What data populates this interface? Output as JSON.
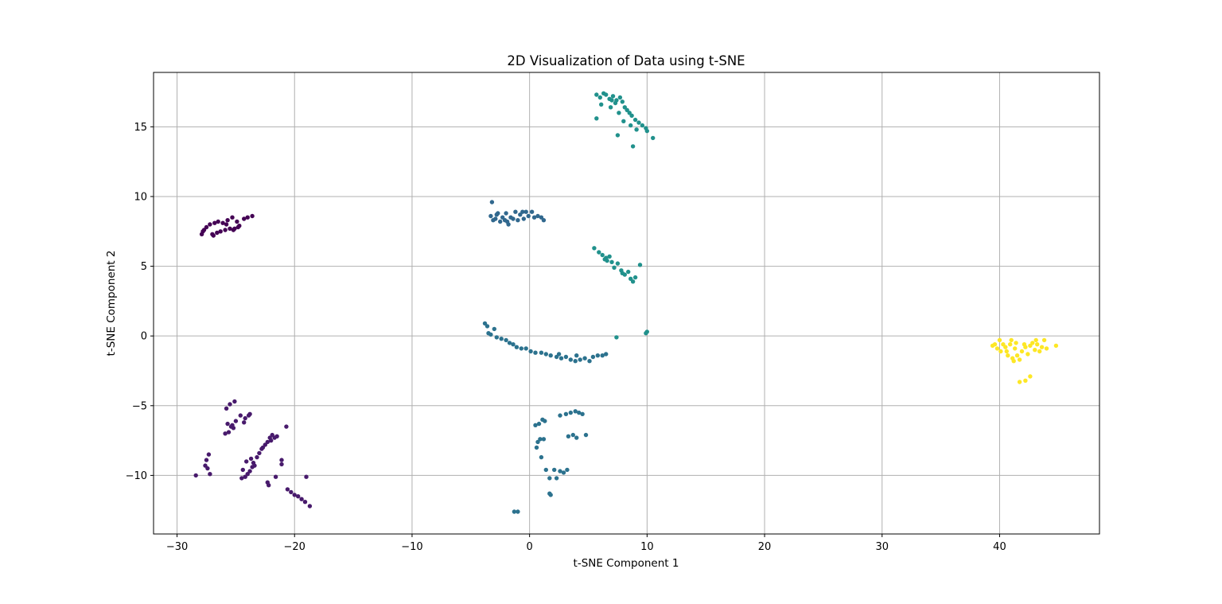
{
  "chart_data": {
    "type": "scatter",
    "title": "2D Visualization of Data using t-SNE",
    "xlabel": "t-SNE Component 1",
    "ylabel": "t-SNE Component 2",
    "xlim": [
      -32,
      48.5
    ],
    "ylim": [
      -14.2,
      18.9
    ],
    "xticks": [
      -30,
      -20,
      -10,
      0,
      10,
      20,
      30,
      40
    ],
    "yticks": [
      -10,
      -5,
      0,
      5,
      10,
      15
    ],
    "xtick_labels": [
      "−30",
      "−20",
      "−10",
      "0",
      "10",
      "20",
      "30",
      "40"
    ],
    "ytick_labels": [
      "−10",
      "−5",
      "0",
      "5",
      "10",
      "15"
    ],
    "grid": true,
    "legend": "none",
    "colormap": "viridis",
    "series": [
      {
        "color": "#440154",
        "points": [
          [
            -27.9,
            7.3
          ],
          [
            -27.7,
            7.6
          ],
          [
            -27.5,
            7.8
          ],
          [
            -27.2,
            8.0
          ],
          [
            -27.0,
            7.3
          ],
          [
            -26.8,
            8.1
          ],
          [
            -26.5,
            8.2
          ],
          [
            -26.3,
            7.5
          ],
          [
            -26.1,
            8.1
          ],
          [
            -25.9,
            7.6
          ],
          [
            -25.7,
            8.3
          ],
          [
            -25.5,
            7.7
          ],
          [
            -25.3,
            8.5
          ],
          [
            -25.1,
            7.7
          ],
          [
            -24.9,
            8.2
          ],
          [
            -24.7,
            7.9
          ],
          [
            -24.3,
            8.4
          ],
          [
            -24.0,
            8.5
          ],
          [
            -23.6,
            8.6
          ],
          [
            -27.8,
            7.5
          ],
          [
            -26.9,
            7.2
          ],
          [
            -25.8,
            8.0
          ],
          [
            -24.8,
            7.8
          ],
          [
            -26.6,
            7.4
          ],
          [
            -25.2,
            7.6
          ]
        ]
      },
      {
        "color": "#481a6c",
        "points": [
          [
            -28.4,
            -10.0
          ],
          [
            -27.6,
            -9.3
          ],
          [
            -27.5,
            -8.9
          ],
          [
            -27.3,
            -8.5
          ],
          [
            -27.2,
            -9.9
          ],
          [
            -27.4,
            -9.5
          ],
          [
            -25.8,
            -5.2
          ],
          [
            -25.5,
            -4.9
          ],
          [
            -25.1,
            -4.7
          ],
          [
            -25.7,
            -6.3
          ],
          [
            -25.4,
            -6.5
          ],
          [
            -25.6,
            -6.9
          ],
          [
            -25.2,
            -6.6
          ],
          [
            -25.9,
            -7.0
          ],
          [
            -25.0,
            -6.1
          ],
          [
            -24.6,
            -5.7
          ],
          [
            -24.2,
            -5.9
          ],
          [
            -23.8,
            -5.6
          ],
          [
            -24.3,
            -6.2
          ],
          [
            -23.9,
            -5.7
          ],
          [
            -24.4,
            -9.6
          ],
          [
            -24.2,
            -10.1
          ],
          [
            -24.0,
            -9.9
          ],
          [
            -23.8,
            -9.7
          ],
          [
            -23.6,
            -9.4
          ],
          [
            -23.5,
            -9.1
          ],
          [
            -24.1,
            -9.0
          ],
          [
            -23.7,
            -8.8
          ],
          [
            -23.2,
            -8.7
          ],
          [
            -23.0,
            -8.4
          ],
          [
            -22.8,
            -8.1
          ],
          [
            -22.5,
            -7.8
          ],
          [
            -22.3,
            -7.6
          ],
          [
            -22.1,
            -7.3
          ],
          [
            -21.9,
            -7.1
          ],
          [
            -21.7,
            -7.3
          ],
          [
            -21.5,
            -7.2
          ],
          [
            -22.3,
            -10.5
          ],
          [
            -22.2,
            -10.7
          ],
          [
            -21.6,
            -10.1
          ],
          [
            -21.1,
            -8.9
          ],
          [
            -21.1,
            -9.2
          ],
          [
            -20.7,
            -6.5
          ],
          [
            -20.6,
            -11.0
          ],
          [
            -20.3,
            -11.2
          ],
          [
            -20.0,
            -11.4
          ],
          [
            -19.7,
            -11.5
          ],
          [
            -19.4,
            -11.7
          ],
          [
            -19.1,
            -11.9
          ],
          [
            -18.7,
            -12.2
          ],
          [
            -19.0,
            -10.1
          ],
          [
            -24.5,
            -10.2
          ],
          [
            -22.7,
            -8.0
          ],
          [
            -25.3,
            -6.4
          ],
          [
            -23.4,
            -9.3
          ],
          [
            -22.0,
            -7.5
          ]
        ]
      },
      {
        "color": "#31688e",
        "points": [
          [
            -3.2,
            9.6
          ],
          [
            -3.3,
            8.6
          ],
          [
            -3.1,
            8.3
          ],
          [
            -2.9,
            8.4
          ],
          [
            -2.7,
            8.8
          ],
          [
            -2.5,
            8.2
          ],
          [
            -2.3,
            8.5
          ],
          [
            -2.1,
            8.3
          ],
          [
            -2.0,
            8.8
          ],
          [
            -1.8,
            8.0
          ],
          [
            -1.6,
            8.5
          ],
          [
            -1.4,
            8.4
          ],
          [
            -1.2,
            8.9
          ],
          [
            -1.0,
            8.3
          ],
          [
            -0.8,
            8.7
          ],
          [
            -0.5,
            8.4
          ],
          [
            -0.3,
            8.9
          ],
          [
            -0.1,
            8.6
          ],
          [
            0.2,
            8.9
          ],
          [
            0.4,
            8.5
          ],
          [
            0.7,
            8.6
          ],
          [
            1.0,
            8.5
          ],
          [
            1.2,
            8.3
          ],
          [
            -0.6,
            8.9
          ],
          [
            -2.8,
            8.7
          ],
          [
            -1.9,
            8.2
          ]
        ]
      },
      {
        "color": "#2c728e",
        "points": [
          [
            -3.8,
            0.9
          ],
          [
            -3.6,
            0.7
          ],
          [
            -3.3,
            0.1
          ],
          [
            -3.0,
            0.5
          ],
          [
            -2.8,
            -0.1
          ],
          [
            -2.4,
            -0.2
          ],
          [
            -2.0,
            -0.3
          ],
          [
            -1.7,
            -0.5
          ],
          [
            -1.4,
            -0.6
          ],
          [
            -1.1,
            -0.8
          ],
          [
            -0.7,
            -0.9
          ],
          [
            -0.3,
            -0.9
          ],
          [
            0.1,
            -1.1
          ],
          [
            0.5,
            -1.2
          ],
          [
            1.0,
            -1.2
          ],
          [
            1.4,
            -1.3
          ],
          [
            1.8,
            -1.4
          ],
          [
            2.3,
            -1.5
          ],
          [
            2.7,
            -1.6
          ],
          [
            3.1,
            -1.5
          ],
          [
            3.5,
            -1.7
          ],
          [
            3.9,
            -1.8
          ],
          [
            4.3,
            -1.7
          ],
          [
            4.7,
            -1.6
          ],
          [
            5.1,
            -1.8
          ],
          [
            5.4,
            -1.5
          ],
          [
            5.8,
            -1.4
          ],
          [
            6.2,
            -1.4
          ],
          [
            6.5,
            -1.3
          ],
          [
            -3.5,
            0.2
          ],
          [
            2.5,
            -1.3
          ],
          [
            4.0,
            -1.4
          ],
          [
            0.5,
            -6.4
          ],
          [
            0.8,
            -6.3
          ],
          [
            1.1,
            -6.0
          ],
          [
            1.2,
            -7.4
          ],
          [
            0.9,
            -7.4
          ],
          [
            0.6,
            -8.0
          ],
          [
            1.0,
            -8.7
          ],
          [
            1.4,
            -9.6
          ],
          [
            1.7,
            -10.2
          ],
          [
            2.1,
            -9.6
          ],
          [
            2.3,
            -10.2
          ],
          [
            2.6,
            -9.7
          ],
          [
            2.9,
            -9.8
          ],
          [
            3.2,
            -9.6
          ],
          [
            1.8,
            -11.4
          ],
          [
            1.7,
            -11.3
          ],
          [
            -1.3,
            -12.6
          ],
          [
            -1.0,
            -12.6
          ],
          [
            2.6,
            -5.7
          ],
          [
            3.1,
            -5.6
          ],
          [
            3.5,
            -5.5
          ],
          [
            3.9,
            -5.4
          ],
          [
            4.2,
            -5.5
          ],
          [
            4.5,
            -5.6
          ],
          [
            3.3,
            -7.2
          ],
          [
            3.7,
            -7.1
          ],
          [
            4.0,
            -7.3
          ],
          [
            4.8,
            -7.1
          ],
          [
            1.3,
            -6.1
          ],
          [
            0.7,
            -7.6
          ]
        ]
      },
      {
        "color": "#21918c",
        "points": [
          [
            5.7,
            17.3
          ],
          [
            6.0,
            17.1
          ],
          [
            6.3,
            17.4
          ],
          [
            6.5,
            17.3
          ],
          [
            6.8,
            17.0
          ],
          [
            7.1,
            17.2
          ],
          [
            7.4,
            16.9
          ],
          [
            7.7,
            17.1
          ],
          [
            7.9,
            16.8
          ],
          [
            8.1,
            16.4
          ],
          [
            8.3,
            16.2
          ],
          [
            8.5,
            16.0
          ],
          [
            8.7,
            15.8
          ],
          [
            9.0,
            15.5
          ],
          [
            9.3,
            15.3
          ],
          [
            9.6,
            15.1
          ],
          [
            9.9,
            14.9
          ],
          [
            10.0,
            14.7
          ],
          [
            10.5,
            14.2
          ],
          [
            6.1,
            16.6
          ],
          [
            6.9,
            16.4
          ],
          [
            7.3,
            16.7
          ],
          [
            7.6,
            16.0
          ],
          [
            8.0,
            15.4
          ],
          [
            8.6,
            15.1
          ],
          [
            7.5,
            14.4
          ],
          [
            8.8,
            13.6
          ],
          [
            5.7,
            15.6
          ],
          [
            9.1,
            14.8
          ],
          [
            7.0,
            16.9
          ],
          [
            5.5,
            6.3
          ],
          [
            5.9,
            6.0
          ],
          [
            6.2,
            5.8
          ],
          [
            6.4,
            5.5
          ],
          [
            6.6,
            5.4
          ],
          [
            6.8,
            5.7
          ],
          [
            7.0,
            5.3
          ],
          [
            7.2,
            4.9
          ],
          [
            7.5,
            5.2
          ],
          [
            7.8,
            4.7
          ],
          [
            8.1,
            4.4
          ],
          [
            8.4,
            4.6
          ],
          [
            8.6,
            4.1
          ],
          [
            8.8,
            3.9
          ],
          [
            9.0,
            4.2
          ],
          [
            9.4,
            5.1
          ],
          [
            6.5,
            5.6
          ],
          [
            7.9,
            4.5
          ],
          [
            10.0,
            0.3
          ],
          [
            9.9,
            0.2
          ],
          [
            7.4,
            -0.1
          ]
        ]
      },
      {
        "color": "#fde725",
        "points": [
          [
            39.4,
            -0.7
          ],
          [
            39.6,
            -0.6
          ],
          [
            39.8,
            -0.9
          ],
          [
            40.0,
            -0.3
          ],
          [
            40.1,
            -1.1
          ],
          [
            40.3,
            -0.6
          ],
          [
            40.5,
            -0.8
          ],
          [
            40.7,
            -1.4
          ],
          [
            40.9,
            -0.6
          ],
          [
            41.0,
            -0.3
          ],
          [
            41.2,
            -1.8
          ],
          [
            41.3,
            -0.9
          ],
          [
            41.4,
            -0.5
          ],
          [
            41.5,
            -1.4
          ],
          [
            41.7,
            -1.7
          ],
          [
            41.9,
            -1.1
          ],
          [
            42.1,
            -0.6
          ],
          [
            42.2,
            -0.8
          ],
          [
            42.4,
            -1.3
          ],
          [
            42.6,
            -0.7
          ],
          [
            42.8,
            -0.5
          ],
          [
            43.0,
            -1.0
          ],
          [
            43.2,
            -0.6
          ],
          [
            43.4,
            -1.1
          ],
          [
            43.6,
            -0.8
          ],
          [
            43.8,
            -0.3
          ],
          [
            44.0,
            -0.9
          ],
          [
            44.8,
            -0.7
          ],
          [
            41.7,
            -3.3
          ],
          [
            42.2,
            -3.2
          ],
          [
            42.6,
            -2.9
          ],
          [
            40.6,
            -1.1
          ],
          [
            41.1,
            -1.6
          ],
          [
            43.1,
            -0.3
          ]
        ]
      }
    ]
  }
}
